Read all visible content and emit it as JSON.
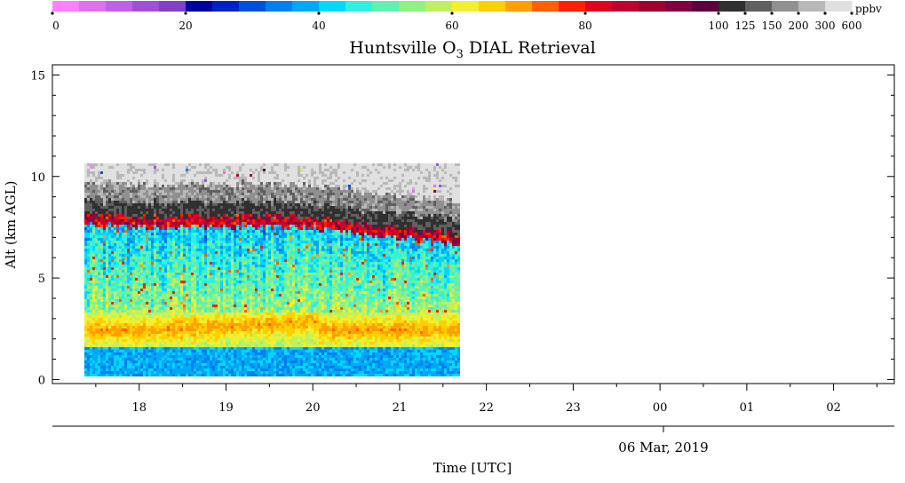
{
  "chart_data": {
    "type": "heatmap",
    "title": "Huntsville O",
    "title_subscript": "3",
    "title_suffix": " DIAL Retrieval",
    "xlabel": "Time [UTC]",
    "ylabel": "Alt (km AGL)",
    "date_label": "06 Mar, 2019",
    "x_ticks": [
      "18",
      "19",
      "20",
      "21",
      "22",
      "23",
      "00",
      "01",
      "02"
    ],
    "x_range_hours_utc": [
      17.0,
      26.7
    ],
    "data_x_range_hours_utc": [
      17.37,
      21.7
    ],
    "y_ticks": [
      "0",
      "5",
      "10",
      "15"
    ],
    "ylim": [
      -0.2,
      15.5
    ],
    "data_y_range_km": [
      0.15,
      10.65
    ],
    "colorbar": {
      "unit": "ppbv",
      "tick_labels": [
        "0",
        "20",
        "40",
        "60",
        "80",
        "100",
        "125",
        "150",
        "200",
        "300",
        "600"
      ],
      "colors": [
        "#ff80ff",
        "#e070f0",
        "#c060e8",
        "#a050d8",
        "#8040c8",
        "#0000a0",
        "#0020c8",
        "#0050e0",
        "#0080f0",
        "#00a8f8",
        "#00d8ff",
        "#30f0e0",
        "#60f0b0",
        "#90f080",
        "#c0f060",
        "#f0f030",
        "#ffd000",
        "#ffa000",
        "#ff6000",
        "#ff2000",
        "#e00020",
        "#c00030",
        "#a00030",
        "#800040",
        "#600040",
        "#303030",
        "#606060",
        "#909090",
        "#b8b8b8",
        "#e0e0e0"
      ]
    },
    "profile_summary": [
      {
        "alt_km": 0.8,
        "ppbv": 40
      },
      {
        "alt_km": 1.8,
        "ppbv": 56
      },
      {
        "alt_km": 2.5,
        "ppbv": 66
      },
      {
        "alt_km": 3.5,
        "ppbv": 58
      },
      {
        "alt_km": 4.5,
        "ppbv": 50
      },
      {
        "alt_km": 5.5,
        "ppbv": 48
      },
      {
        "alt_km": 6.5,
        "ppbv": 44
      },
      {
        "alt_km": 7.5,
        "ppbv": 42
      },
      {
        "alt_km": 8.0,
        "ppbv": 85
      },
      {
        "alt_km": 9.0,
        "ppbv": 150
      },
      {
        "alt_km": 10.3,
        "ppbv": 600
      }
    ]
  }
}
